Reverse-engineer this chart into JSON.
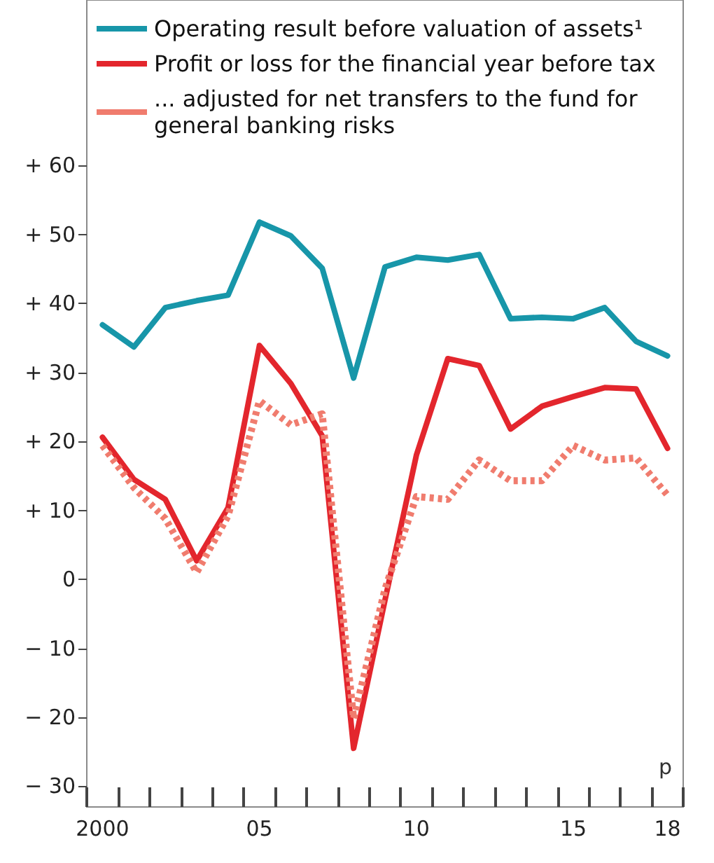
{
  "chart_data": {
    "type": "line",
    "categories": [
      "2000",
      null,
      null,
      null,
      null,
      "05",
      null,
      null,
      null,
      null,
      "10",
      null,
      null,
      null,
      null,
      "15",
      null,
      null,
      "18"
    ],
    "series": [
      {
        "name": "Operating result before valuation of assets¹",
        "color": "#1796a9",
        "line_style": "solid",
        "values": [
          36.9,
          33.7,
          39.4,
          40.4,
          41.2,
          51.8,
          49.8,
          45.1,
          29.2,
          45.3,
          46.7,
          46.3,
          47.1,
          37.8,
          38,
          37.8,
          39.4,
          34.5,
          32.4
        ]
      },
      {
        "name": "Profit or loss for the financial year before tax",
        "color": "#e3262d",
        "line_style": "solid",
        "values": [
          20.6,
          14.5,
          11.6,
          2.7,
          10.4,
          33.9,
          28.4,
          20.8,
          -24.5,
          -3,
          18,
          32,
          31,
          21.8,
          25.1,
          26.5,
          27.8,
          27.6,
          19
        ]
      },
      {
        "name": "... adjusted for net transfers to the fund for general banking risks",
        "color": "#f07c6e",
        "line_style": "dotted",
        "values": [
          19.4,
          13.3,
          8.8,
          1,
          9.2,
          25.9,
          22.4,
          24,
          -20.2,
          -1.4,
          12,
          11.6,
          17.3,
          14.3,
          14.3,
          19.4,
          17.3,
          17.6,
          12.2
        ]
      }
    ],
    "ylim": [
      -33,
      84
    ],
    "yticks": [
      {
        "value": -30,
        "label": "− 30"
      },
      {
        "value": -20,
        "label": "− 20"
      },
      {
        "value": -10,
        "label": "− 10"
      },
      0,
      {
        "value": 10,
        "label": "+ 10"
      },
      {
        "value": 20,
        "label": "+ 20"
      },
      {
        "value": 30,
        "label": "+ 30"
      },
      {
        "value": 40,
        "label": "+ 40"
      },
      {
        "value": 50,
        "label": "+ 50"
      },
      {
        "value": 60,
        "label": "+ 60"
      }
    ],
    "annotations": [
      "p"
    ],
    "grid": false,
    "legend": "top",
    "marker": "none"
  }
}
